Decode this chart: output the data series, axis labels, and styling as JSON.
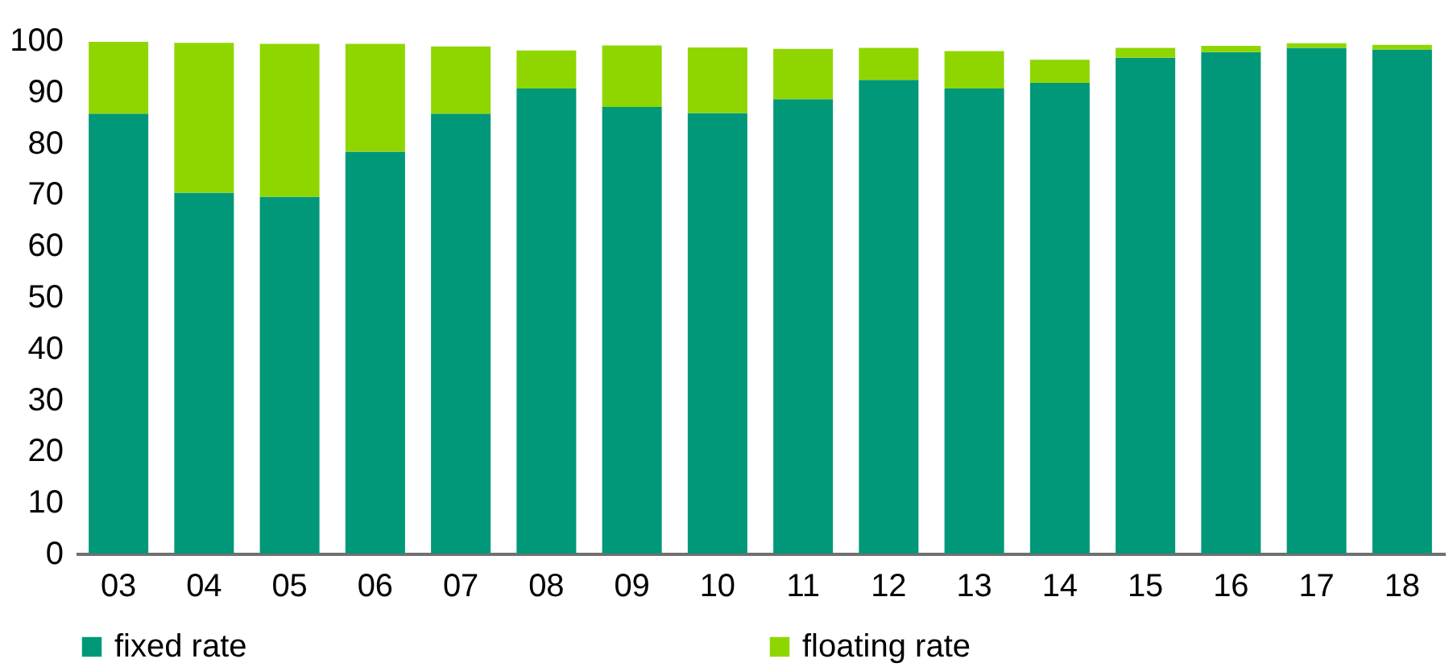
{
  "chart_data": {
    "type": "bar",
    "stacked": true,
    "categories": [
      "03",
      "04",
      "05",
      "06",
      "07",
      "08",
      "09",
      "10",
      "11",
      "12",
      "13",
      "14",
      "15",
      "16",
      "17",
      "18"
    ],
    "series": [
      {
        "name": "fixed rate",
        "color": "#009878",
        "values": [
          85.7,
          70.3,
          69.5,
          78.3,
          85.7,
          90.6,
          87.0,
          85.8,
          88.5,
          92.3,
          90.6,
          91.7,
          96.6,
          97.7,
          98.5,
          98.2
        ]
      },
      {
        "name": "floating rate",
        "color": "#8fd600",
        "values": [
          14.0,
          29.2,
          29.8,
          21.0,
          13.1,
          7.4,
          12.0,
          12.8,
          9.8,
          6.2,
          7.3,
          4.5,
          1.9,
          1.2,
          0.9,
          0.9
        ]
      }
    ],
    "ylim": [
      0,
      100
    ],
    "yticks": [
      0,
      10,
      20,
      30,
      40,
      50,
      60,
      70,
      80,
      90,
      100
    ],
    "grid": false,
    "legend": "bottom"
  }
}
